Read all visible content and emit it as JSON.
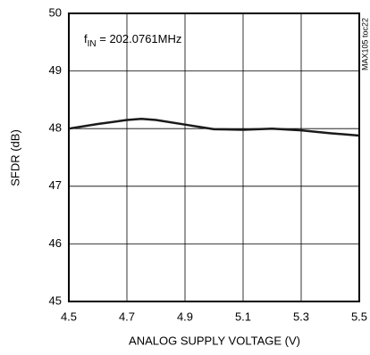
{
  "chart_data": {
    "type": "line",
    "xlabel": "ANALOG SUPPLY VOLTAGE (V)",
    "ylabel": "SFDR (dB)",
    "annotation": {
      "main": "f",
      "sub": "IN",
      "rest": " = 202.0761MHz"
    },
    "figure_id": "MAX105 toc22",
    "xlim": [
      4.5,
      5.5
    ],
    "xticks": [
      4.5,
      4.7,
      4.9,
      5.1,
      5.3,
      5.5
    ],
    "ylim": [
      45,
      50
    ],
    "yticks": [
      45,
      46,
      47,
      48,
      49,
      50
    ],
    "grid": true,
    "series": [
      {
        "color": "#1a1a1a",
        "x": [
          4.5,
          4.6,
          4.7,
          4.75,
          4.8,
          4.9,
          5.0,
          5.1,
          5.2,
          5.3,
          5.4,
          5.5
        ],
        "values": [
          48.0,
          48.08,
          48.15,
          48.17,
          48.15,
          48.07,
          47.99,
          47.98,
          48.0,
          47.97,
          47.92,
          47.88
        ]
      }
    ]
  }
}
